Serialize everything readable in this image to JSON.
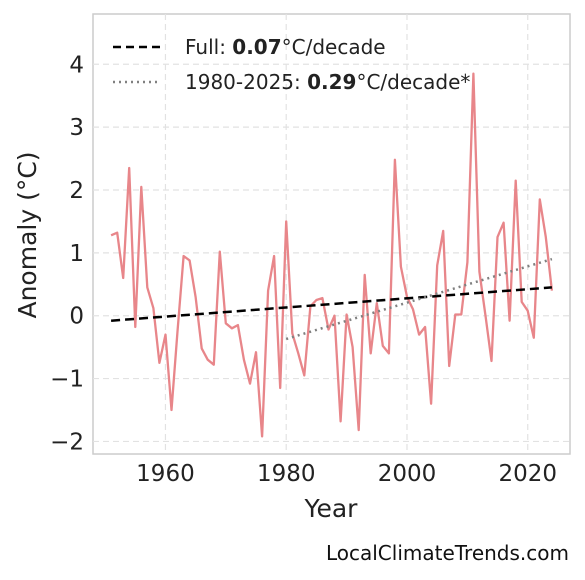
{
  "chart_data": {
    "type": "line",
    "xlabel": "Year",
    "ylabel": "Anomaly (°C)",
    "xlim": [
      1948,
      2027
    ],
    "ylim": [
      -2.2,
      4.8
    ],
    "xticks": [
      1960,
      1980,
      2000,
      2020
    ],
    "yticks": [
      -2,
      -1,
      0,
      1,
      2,
      3,
      4
    ],
    "ytick_labels": [
      "−2",
      "−1",
      "0",
      "1",
      "2",
      "3",
      "4"
    ],
    "grid": true,
    "legend_position": "top-left",
    "series": [
      {
        "color": "#e8868a",
        "style": "solid",
        "x": [
          1951,
          1952,
          1953,
          1954,
          1955,
          1956,
          1957,
          1958,
          1959,
          1960,
          1961,
          1962,
          1963,
          1964,
          1965,
          1966,
          1967,
          1968,
          1969,
          1970,
          1971,
          1972,
          1973,
          1974,
          1975,
          1976,
          1977,
          1978,
          1979,
          1980,
          1981,
          1982,
          1983,
          1984,
          1985,
          1986,
          1987,
          1988,
          1989,
          1990,
          1991,
          1992,
          1993,
          1994,
          1995,
          1996,
          1997,
          1998,
          1999,
          2000,
          2001,
          2002,
          2003,
          2004,
          2005,
          2006,
          2007,
          2008,
          2009,
          2010,
          2011,
          2012,
          2013,
          2014,
          2015,
          2016,
          2017,
          2018,
          2019,
          2020,
          2021,
          2022,
          2023,
          2024
        ],
        "y": [
          1.28,
          1.32,
          0.6,
          2.35,
          -0.18,
          2.05,
          0.45,
          0.12,
          -0.75,
          -0.3,
          -1.5,
          -0.25,
          0.95,
          0.88,
          0.3,
          -0.52,
          -0.7,
          -0.78,
          1.02,
          -0.12,
          -0.2,
          -0.15,
          -0.7,
          -1.08,
          -0.58,
          -1.92,
          0.4,
          0.95,
          -1.15,
          1.5,
          -0.28,
          -0.6,
          -0.95,
          0.15,
          0.25,
          0.28,
          -0.22,
          0.0,
          -1.68,
          0.02,
          -0.5,
          -1.82,
          0.65,
          -0.6,
          0.2,
          -0.48,
          -0.6,
          2.48,
          0.78,
          0.3,
          0.1,
          -0.3,
          -0.18,
          -1.4,
          0.8,
          1.35,
          -0.8,
          0.02,
          0.02,
          0.85,
          3.85,
          0.7,
          0.0,
          -0.72,
          1.25,
          1.48,
          -0.08,
          2.15,
          0.22,
          0.08,
          -0.35,
          1.85,
          1.25,
          0.4
        ]
      },
      {
        "color": "#000000",
        "style": "dashed",
        "x": [
          1951,
          2024
        ],
        "y": [
          -0.08,
          0.45
        ]
      },
      {
        "color": "#808080",
        "style": "dotted",
        "x": [
          1980,
          2024
        ],
        "y": [
          -0.37,
          0.9
        ]
      }
    ]
  },
  "legend": [
    {
      "prefix": "Full: ",
      "value": "0.07",
      "suffix": "°C/decade"
    },
    {
      "prefix": "1980-2025: ",
      "value": "0.29",
      "suffix": "°C/decade*"
    }
  ],
  "watermark": "LocalClimateTrends.com"
}
